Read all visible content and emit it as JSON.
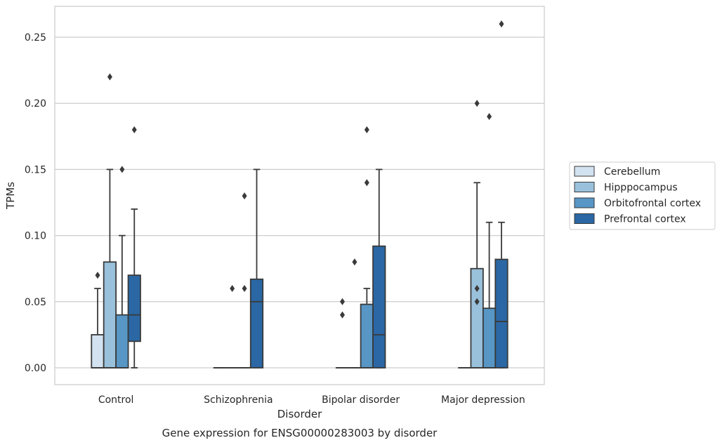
{
  "chart_data": {
    "type": "box",
    "xlabel": "Disorder",
    "ylabel": "TPMs",
    "caption": "Gene expression for ENSG00000283003 by disorder",
    "ylim": [
      -0.0125,
      0.2725
    ],
    "yticks": [
      0.0,
      0.05,
      0.1,
      0.15,
      0.2,
      0.25
    ],
    "ytick_labels": [
      "0.00",
      "0.05",
      "0.10",
      "0.15",
      "0.20",
      "0.25"
    ],
    "grid": "horizontal",
    "legend_position": "right",
    "categories": [
      "Control",
      "Schizophrenia",
      "Bipolar disorder",
      "Major depression"
    ],
    "series": [
      {
        "name": "Cerebellum",
        "color": "#d3e2f0",
        "boxes": [
          {
            "q1": 0.0,
            "median": 0.0,
            "q3": 0.025,
            "whisker_low": 0.0,
            "whisker_high": 0.06,
            "outliers": [
              0.07
            ]
          },
          {
            "q1": 0.0,
            "median": 0.0,
            "q3": 0.0,
            "whisker_low": 0.0,
            "whisker_high": 0.0,
            "outliers": []
          },
          {
            "q1": 0.0,
            "median": 0.0,
            "q3": 0.0,
            "whisker_low": 0.0,
            "whisker_high": 0.0,
            "outliers": [
              0.04,
              0.05
            ]
          },
          {
            "q1": 0.0,
            "median": 0.0,
            "q3": 0.0,
            "whisker_low": 0.0,
            "whisker_high": 0.0,
            "outliers": []
          }
        ]
      },
      {
        "name": "Hipppocampus",
        "color": "#9ac1dc",
        "boxes": [
          {
            "q1": 0.0,
            "median": 0.0,
            "q3": 0.08,
            "whisker_low": 0.0,
            "whisker_high": 0.15,
            "outliers": [
              0.22
            ]
          },
          {
            "q1": 0.0,
            "median": 0.0,
            "q3": 0.0,
            "whisker_low": 0.0,
            "whisker_high": 0.0,
            "outliers": [
              0.06
            ]
          },
          {
            "q1": 0.0,
            "median": 0.0,
            "q3": 0.0,
            "whisker_low": 0.0,
            "whisker_high": 0.0,
            "outliers": [
              0.08
            ]
          },
          {
            "q1": 0.0,
            "median": 0.0,
            "q3": 0.075,
            "whisker_low": 0.0,
            "whisker_high": 0.14,
            "outliers": [
              0.05,
              0.06,
              0.2
            ]
          }
        ]
      },
      {
        "name": "Orbitofrontal cortex",
        "color": "#5796c5",
        "boxes": [
          {
            "q1": 0.0,
            "median": 0.0,
            "q3": 0.04,
            "whisker_low": 0.0,
            "whisker_high": 0.1,
            "outliers": [
              0.15
            ]
          },
          {
            "q1": 0.0,
            "median": 0.0,
            "q3": 0.0,
            "whisker_low": 0.0,
            "whisker_high": 0.0,
            "outliers": [
              0.06,
              0.13
            ]
          },
          {
            "q1": 0.0,
            "median": 0.0,
            "q3": 0.048,
            "whisker_low": 0.0,
            "whisker_high": 0.06,
            "outliers": [
              0.14,
              0.18
            ]
          },
          {
            "q1": 0.0,
            "median": 0.0,
            "q3": 0.045,
            "whisker_low": 0.0,
            "whisker_high": 0.11,
            "outliers": [
              0.19
            ]
          }
        ]
      },
      {
        "name": "Prefrontal cortex",
        "color": "#2a67a4",
        "boxes": [
          {
            "q1": 0.02,
            "median": 0.04,
            "q3": 0.07,
            "whisker_low": 0.0,
            "whisker_high": 0.12,
            "outliers": [
              0.18
            ]
          },
          {
            "q1": 0.0,
            "median": 0.05,
            "q3": 0.067,
            "whisker_low": 0.0,
            "whisker_high": 0.15,
            "outliers": []
          },
          {
            "q1": 0.0,
            "median": 0.025,
            "q3": 0.092,
            "whisker_low": 0.0,
            "whisker_high": 0.15,
            "outliers": []
          },
          {
            "q1": 0.0,
            "median": 0.035,
            "q3": 0.082,
            "whisker_low": 0.0,
            "whisker_high": 0.11,
            "outliers": [
              0.26
            ]
          }
        ]
      }
    ]
  }
}
